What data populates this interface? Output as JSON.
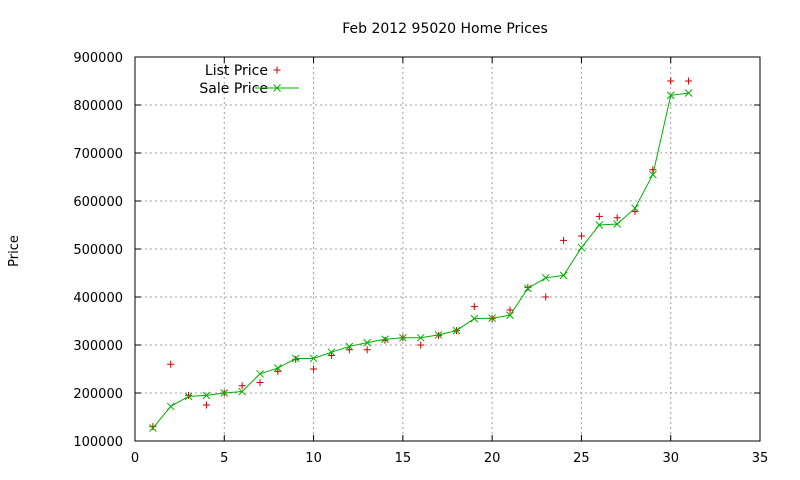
{
  "chart_data": {
    "type": "line",
    "title": "Feb 2012 95020 Home Prices",
    "xlabel": "",
    "ylabel": "Price",
    "xlim": [
      0,
      35
    ],
    "ylim": [
      100000,
      900000
    ],
    "x_ticks": [
      0,
      5,
      10,
      15,
      20,
      25,
      30,
      35
    ],
    "y_ticks": [
      100000,
      200000,
      300000,
      400000,
      500000,
      600000,
      700000,
      800000,
      900000
    ],
    "grid": true,
    "legend_position": "top-left",
    "series": [
      {
        "name": "List Price",
        "style": "points",
        "marker": "plus",
        "color": "#cc0000",
        "x": [
          1,
          2,
          3,
          4,
          5,
          6,
          7,
          8,
          9,
          10,
          11,
          12,
          13,
          14,
          15,
          16,
          17,
          18,
          19,
          20,
          21,
          22,
          23,
          24,
          25,
          26,
          27,
          28,
          29,
          30,
          31
        ],
        "values": [
          130000,
          260000,
          195000,
          175000,
          200000,
          215000,
          222000,
          245000,
          270000,
          250000,
          278000,
          290000,
          290000,
          310000,
          315000,
          300000,
          320000,
          330000,
          380000,
          355000,
          373000,
          420000,
          400000,
          518000,
          527000,
          568000,
          565000,
          578000,
          665000,
          850000,
          850000
        ]
      },
      {
        "name": "Sale Price",
        "style": "linespoints",
        "marker": "x",
        "color": "#00b000",
        "x": [
          1,
          2,
          3,
          4,
          5,
          6,
          7,
          8,
          9,
          10,
          11,
          12,
          13,
          14,
          15,
          16,
          17,
          18,
          19,
          20,
          21,
          22,
          23,
          24,
          25,
          26,
          27,
          28,
          29,
          30,
          31
        ],
        "values": [
          127000,
          172000,
          193000,
          195000,
          200000,
          203000,
          240000,
          252000,
          272000,
          272000,
          285000,
          297000,
          305000,
          312000,
          315000,
          315000,
          321000,
          330000,
          355000,
          356000,
          362000,
          418000,
          440000,
          445000,
          503000,
          550000,
          552000,
          585000,
          655000,
          820000,
          825000
        ]
      }
    ]
  }
}
